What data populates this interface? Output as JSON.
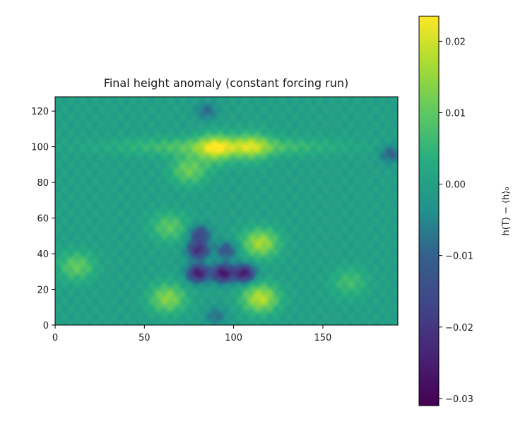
{
  "chart_data": {
    "type": "heatmap",
    "title": "Final height anomaly (constant forcing run)",
    "xlabel": "",
    "ylabel": "",
    "colorbar_label": "h(T) − ⟨h⟩₀",
    "xlim": [
      0,
      192
    ],
    "ylim": [
      0,
      128
    ],
    "x_ticks": [
      0,
      50,
      100,
      150
    ],
    "y_ticks": [
      0,
      20,
      40,
      60,
      80,
      100,
      120
    ],
    "colorbar_ticks": [
      0.02,
      0.01,
      0.0,
      -0.01,
      -0.02,
      -0.03
    ],
    "colorbar_tick_labels": [
      "0.02",
      "0.01",
      "0.00",
      "−0.01",
      "−0.02",
      "−0.03"
    ],
    "colorbar_range": [
      -0.031,
      0.0235
    ],
    "colormap": "viridis",
    "grid": false,
    "background_value": 0.0,
    "features": [
      {
        "name": "upper band",
        "x": 90,
        "y": 99,
        "value": 0.018
      },
      {
        "name": "upper band right",
        "x": 110,
        "y": 100,
        "value": 0.014
      },
      {
        "name": "sub band",
        "x": 75,
        "y": 87,
        "value": 0.013
      },
      {
        "name": "left lobe",
        "x": 12,
        "y": 33,
        "value": 0.012
      },
      {
        "name": "lower left column",
        "x": 63,
        "y": 15,
        "value": 0.016
      },
      {
        "name": "lower right column",
        "x": 115,
        "y": 15,
        "value": 0.021
      },
      {
        "name": "right column mid",
        "x": 115,
        "y": 46,
        "value": 0.019
      },
      {
        "name": "left column mid",
        "x": 64,
        "y": 55,
        "value": 0.011
      },
      {
        "name": "lower right band",
        "x": 165,
        "y": 24,
        "value": 0.008
      },
      {
        "name": "minimum 1",
        "x": 80,
        "y": 29,
        "value": -0.03
      },
      {
        "name": "minimum 2",
        "x": 94,
        "y": 29,
        "value": -0.031
      },
      {
        "name": "minimum 3",
        "x": 106,
        "y": 29,
        "value": -0.03
      },
      {
        "name": "minimum 4",
        "x": 80,
        "y": 42,
        "value": -0.025
      },
      {
        "name": "minimum 5",
        "x": 96,
        "y": 42,
        "value": -0.015
      },
      {
        "name": "minimum 6",
        "x": 81,
        "y": 51,
        "value": -0.018
      },
      {
        "name": "top dip",
        "x": 85,
        "y": 120,
        "value": -0.01
      },
      {
        "name": "right edge dip",
        "x": 188,
        "y": 96,
        "value": -0.012
      },
      {
        "name": "bottom dip",
        "x": 90,
        "y": 5,
        "value": -0.009
      }
    ]
  }
}
